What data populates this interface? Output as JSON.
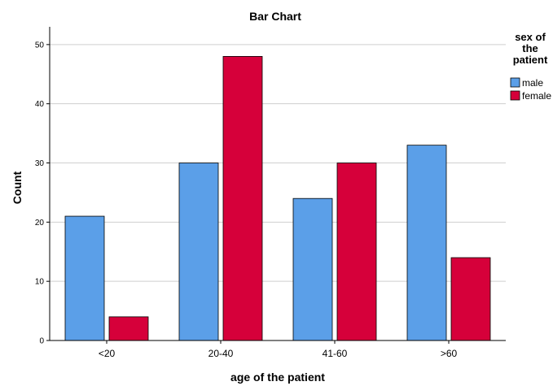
{
  "chart_data": {
    "type": "bar",
    "title": "Bar Chart",
    "xlabel": "age of the patient",
    "ylabel": "Count",
    "categories": [
      "<20",
      "20-40",
      "41-60",
      ">60"
    ],
    "series": [
      {
        "name": "male",
        "values": [
          21,
          30,
          24,
          33
        ],
        "color": "#5B9FE8"
      },
      {
        "name": "female",
        "values": [
          4,
          48,
          30,
          14
        ],
        "color": "#D6003A"
      }
    ],
    "ylim": [
      0,
      53
    ],
    "yticks": [
      0,
      10,
      20,
      30,
      40,
      50
    ],
    "grid": true,
    "legend": {
      "title_lines": [
        "sex of",
        "the",
        "patient"
      ],
      "placement": "top-right"
    }
  }
}
